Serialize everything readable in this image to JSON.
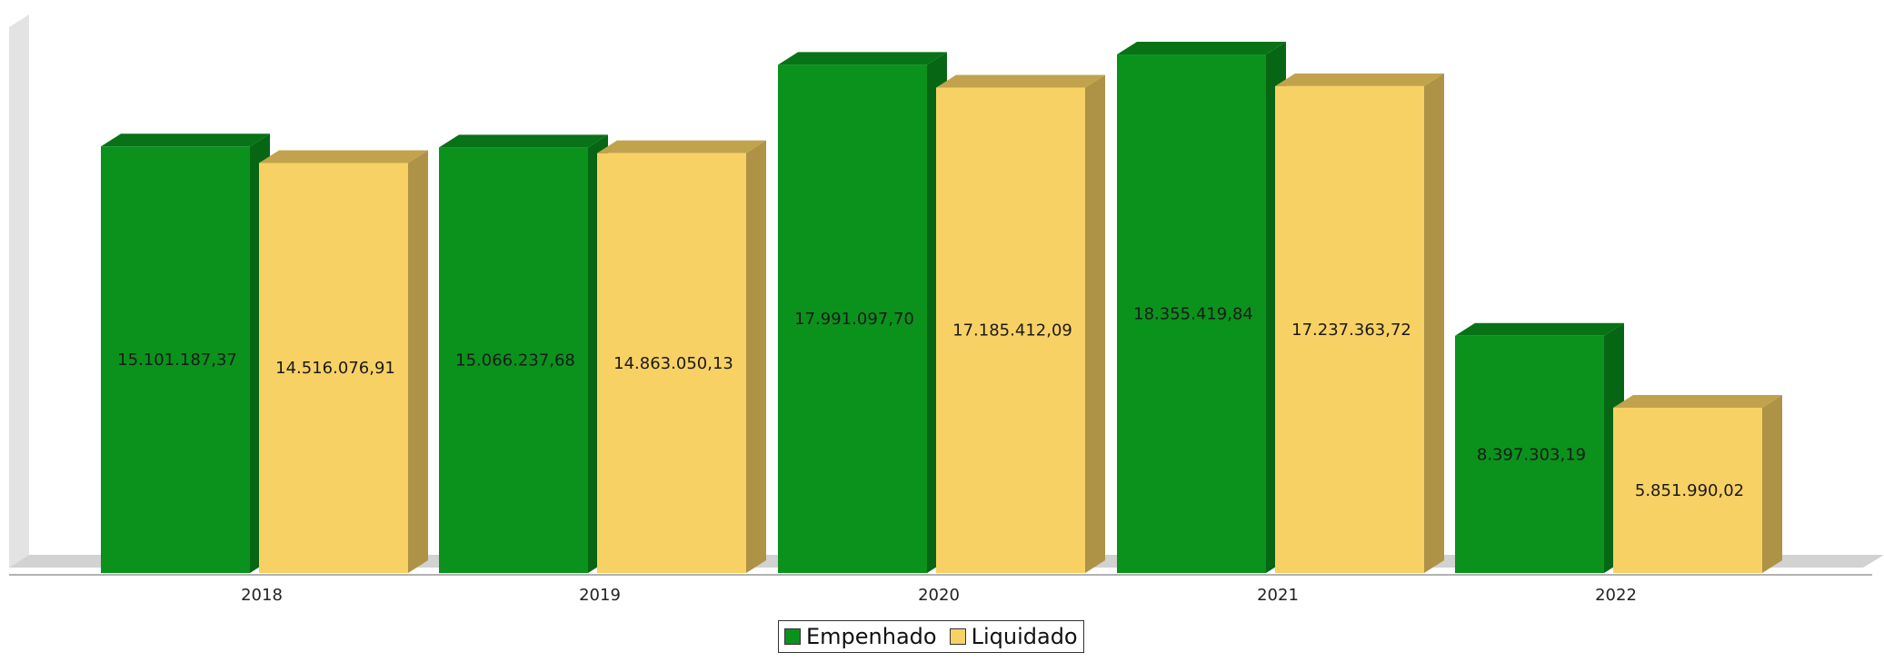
{
  "chart_data": {
    "type": "bar",
    "style": "3d-grouped",
    "categories": [
      "2018",
      "2019",
      "2020",
      "2021",
      "2022"
    ],
    "series": [
      {
        "name": "Empenhado",
        "color": "#0a921c",
        "values": [
          15101187.37,
          15066237.68,
          17991097.7,
          18355419.84,
          8397303.19
        ],
        "labels": [
          "15.101.187,37",
          "15.066.237,68",
          "17.991.097,70",
          "18.355.419,84",
          "8.397.303,19"
        ]
      },
      {
        "name": "Liquidado",
        "color": "#f8d164",
        "values": [
          14516076.91,
          14863050.13,
          17185412.09,
          17237363.72,
          5851990.02
        ],
        "labels": [
          "14.516.076,91",
          "14.863.050,13",
          "17.185.412,09",
          "17.237.363,72",
          "5.851.990,02"
        ]
      }
    ],
    "ylim": [
      0,
      19000000
    ],
    "y_axis_visible": false,
    "grid": false,
    "legend_position": "bottom-center",
    "title": "",
    "xlabel": "",
    "ylabel": ""
  }
}
